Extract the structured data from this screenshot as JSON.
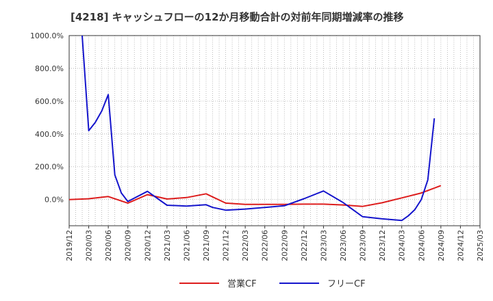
{
  "chart_data": {
    "type": "line",
    "title": "[4218]  キャッシュフローの12か月移動合計の対前年同期増減率の推移",
    "xlabel": "",
    "ylabel": "",
    "ylim": [
      -160,
      1000
    ],
    "yticks": [
      0,
      200,
      400,
      600,
      800,
      1000
    ],
    "ytick_labels": [
      "0.0%",
      "200.0%",
      "400.0%",
      "600.0%",
      "800.0%",
      "1000.0%"
    ],
    "xlim": [
      "2019-12",
      "2025-03"
    ],
    "xtick_labels": [
      "2019/12",
      "2020/03",
      "2020/06",
      "2020/09",
      "2020/12",
      "2021/03",
      "2021/06",
      "2021/09",
      "2021/12",
      "2022/03",
      "2022/06",
      "2022/09",
      "2022/12",
      "2023/03",
      "2023/06",
      "2023/09",
      "2023/12",
      "2024/03",
      "2024/06",
      "2024/09",
      "2024/12",
      "2025/03"
    ],
    "grid": true,
    "legend_position": "bottom",
    "colors": {
      "operating": "#dd1c1c",
      "free": "#1414cc",
      "axis": "#333333",
      "grid": "#aaaaaa"
    },
    "series": [
      {
        "name": "営業CF",
        "color": "#dd1c1c",
        "x": [
          "2019-12",
          "2020-03",
          "2020-06",
          "2020-09",
          "2020-12",
          "2021-03",
          "2021-06",
          "2021-09",
          "2021-12",
          "2022-03",
          "2022-06",
          "2022-09",
          "2022-12",
          "2023-03",
          "2023-06",
          "2023-09",
          "2023-12",
          "2024-03",
          "2024-06",
          "2024-09"
        ],
        "values": [
          0,
          5,
          18,
          -22,
          30,
          3,
          12,
          35,
          -22,
          -30,
          -30,
          -30,
          -28,
          -28,
          -33,
          -42,
          -20,
          10,
          40,
          85
        ]
      },
      {
        "name": "フリーCF",
        "color": "#1414cc",
        "x": [
          "2020-02",
          "2020-03",
          "2020-04",
          "2020-05",
          "2020-06",
          "2020-07",
          "2020-08",
          "2020-09",
          "2020-12",
          "2021-03",
          "2021-06",
          "2021-09",
          "2021-10",
          "2021-12",
          "2022-03",
          "2022-06",
          "2022-09",
          "2022-12",
          "2023-03",
          "2023-06",
          "2023-09",
          "2023-12",
          "2024-03",
          "2024-04",
          "2024-05",
          "2024-06",
          "2024-07",
          "2024-08"
        ],
        "values": [
          1000,
          420,
          470,
          540,
          640,
          150,
          40,
          -12,
          50,
          -35,
          -40,
          -32,
          -48,
          -65,
          -58,
          -48,
          -38,
          5,
          52,
          -18,
          -105,
          -118,
          -128,
          -100,
          -62,
          0,
          120,
          495
        ]
      }
    ]
  }
}
